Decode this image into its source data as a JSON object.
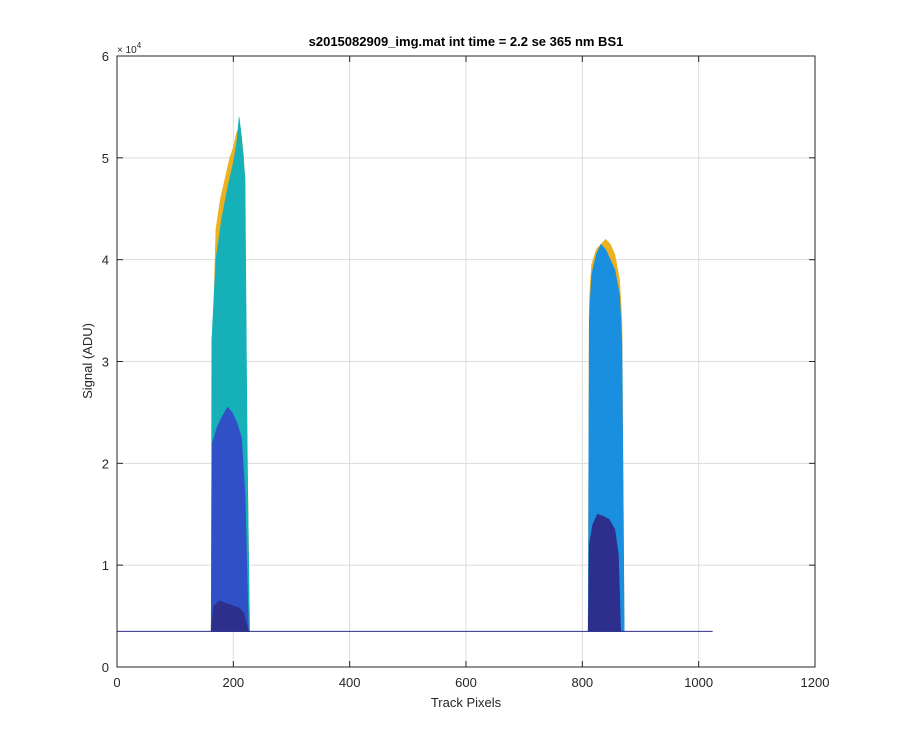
{
  "chart_data": {
    "type": "area",
    "title": "s2015082909_img.mat int time = 2.2 se  365 nm BS1",
    "xlabel": "Track Pixels",
    "ylabel": "Signal (ADU)",
    "xlim": [
      0,
      1200
    ],
    "ylim": [
      0,
      60000
    ],
    "x_ticks": [
      0,
      200,
      400,
      600,
      800,
      1000,
      1200
    ],
    "y_ticks": [
      0,
      10000,
      20000,
      30000,
      40000,
      50000,
      60000
    ],
    "x_tick_labels": [
      "0",
      "200",
      "400",
      "600",
      "800",
      "1000",
      "1200"
    ],
    "y_tick_labels": [
      "0",
      "1",
      "2",
      "3",
      "4",
      "5",
      "6"
    ],
    "y_exponent_label": "× 10",
    "y_exponent_power": "4",
    "grid": true,
    "baseline": 3500,
    "baseline_x_range": [
      0,
      1024
    ],
    "series": [
      {
        "color": "#EDB120",
        "points": [
          [
            162,
            3500
          ],
          [
            164,
            30000
          ],
          [
            170,
            43000
          ],
          [
            178,
            46000
          ],
          [
            186,
            48000
          ],
          [
            194,
            50000
          ],
          [
            200,
            51000
          ],
          [
            206,
            52500
          ],
          [
            212,
            53000
          ],
          [
            218,
            50000
          ],
          [
            222,
            30000
          ],
          [
            228,
            3500
          ]
        ]
      },
      {
        "color": "#16B0B8",
        "points": [
          [
            162,
            3500
          ],
          [
            163,
            32000
          ],
          [
            170,
            40000
          ],
          [
            180,
            44000
          ],
          [
            190,
            47000
          ],
          [
            200,
            49500
          ],
          [
            206,
            51500
          ],
          [
            210,
            54000
          ],
          [
            214,
            52000
          ],
          [
            220,
            48000
          ],
          [
            224,
            20000
          ],
          [
            228,
            3500
          ]
        ]
      },
      {
        "color": "#EDB120",
        "points": [
          [
            810,
            3500
          ],
          [
            812,
            36000
          ],
          [
            816,
            39500
          ],
          [
            824,
            41000
          ],
          [
            832,
            41500
          ],
          [
            840,
            42000
          ],
          [
            848,
            41500
          ],
          [
            856,
            40500
          ],
          [
            864,
            38000
          ],
          [
            868,
            34000
          ],
          [
            872,
            3500
          ]
        ]
      },
      {
        "color": "#1A8FE0",
        "points": [
          [
            810,
            3500
          ],
          [
            812,
            34000
          ],
          [
            816,
            38500
          ],
          [
            824,
            40500
          ],
          [
            832,
            41500
          ],
          [
            840,
            41000
          ],
          [
            848,
            40000
          ],
          [
            856,
            39000
          ],
          [
            864,
            36500
          ],
          [
            868,
            32000
          ],
          [
            872,
            3500
          ]
        ]
      },
      {
        "color": "#3050C8",
        "points": [
          [
            162,
            3500
          ],
          [
            164,
            22000
          ],
          [
            172,
            23500
          ],
          [
            180,
            24500
          ],
          [
            190,
            25500
          ],
          [
            198,
            25000
          ],
          [
            206,
            24000
          ],
          [
            214,
            22500
          ],
          [
            220,
            17000
          ],
          [
            226,
            3500
          ]
        ]
      },
      {
        "color": "#2E2F8C",
        "points": [
          [
            162,
            3500
          ],
          [
            166,
            6000
          ],
          [
            176,
            6500
          ],
          [
            190,
            6200
          ],
          [
            200,
            6000
          ],
          [
            210,
            5800
          ],
          [
            218,
            5300
          ],
          [
            226,
            3500
          ]
        ]
      },
      {
        "color": "#2E2F8C",
        "points": [
          [
            810,
            3500
          ],
          [
            812,
            12000
          ],
          [
            818,
            14000
          ],
          [
            826,
            15000
          ],
          [
            836,
            14800
          ],
          [
            846,
            14500
          ],
          [
            856,
            13500
          ],
          [
            862,
            11000
          ],
          [
            866,
            3500
          ]
        ]
      }
    ]
  }
}
